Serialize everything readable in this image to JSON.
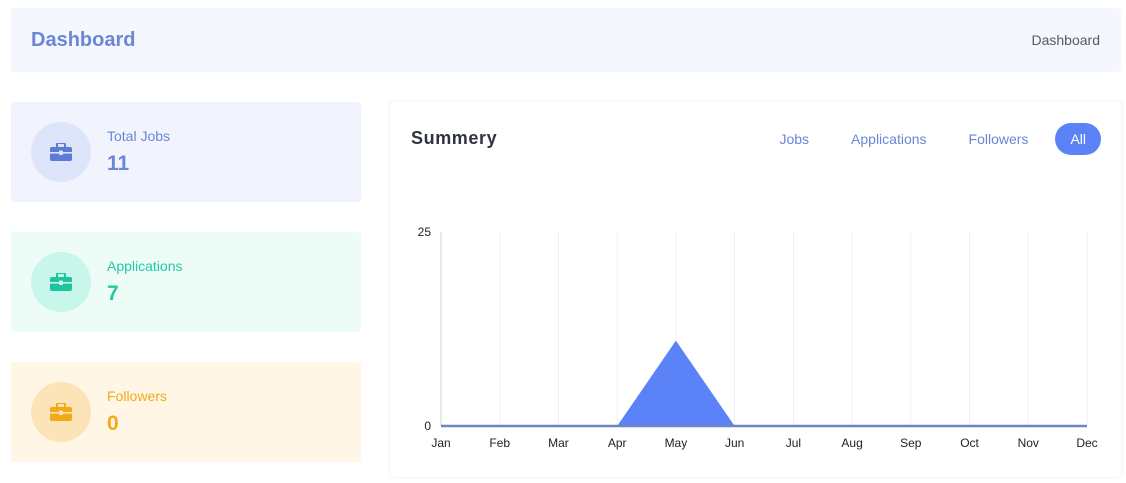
{
  "header": {
    "title": "Dashboard",
    "breadcrumb": "Dashboard"
  },
  "stats": [
    {
      "label": "Total Jobs",
      "value": "11",
      "icon": "briefcase-icon",
      "color": "#6a86d6"
    },
    {
      "label": "Applications",
      "value": "7",
      "icon": "briefcase-icon",
      "color": "#22c9a3"
    },
    {
      "label": "Followers",
      "value": "0",
      "icon": "briefcase-icon",
      "color": "#f2a91a"
    }
  ],
  "summary": {
    "title": "Summery",
    "filters": [
      "Jobs",
      "Applications",
      "Followers",
      "All"
    ],
    "active_filter": "All"
  },
  "colors": {
    "accent": "#5b83f7",
    "area_fill": "#5b83f7"
  },
  "chart_data": {
    "type": "area",
    "categories": [
      "Jan",
      "Feb",
      "Mar",
      "Apr",
      "May",
      "Jun",
      "Jul",
      "Aug",
      "Sep",
      "Oct",
      "Nov",
      "Dec"
    ],
    "series": [
      {
        "values": [
          0,
          0,
          0,
          0,
          11,
          0,
          0,
          0,
          0,
          0,
          0,
          0
        ]
      }
    ],
    "ylim": [
      0,
      25
    ],
    "yticks": [
      "0",
      "25"
    ],
    "grid": "vertical"
  }
}
